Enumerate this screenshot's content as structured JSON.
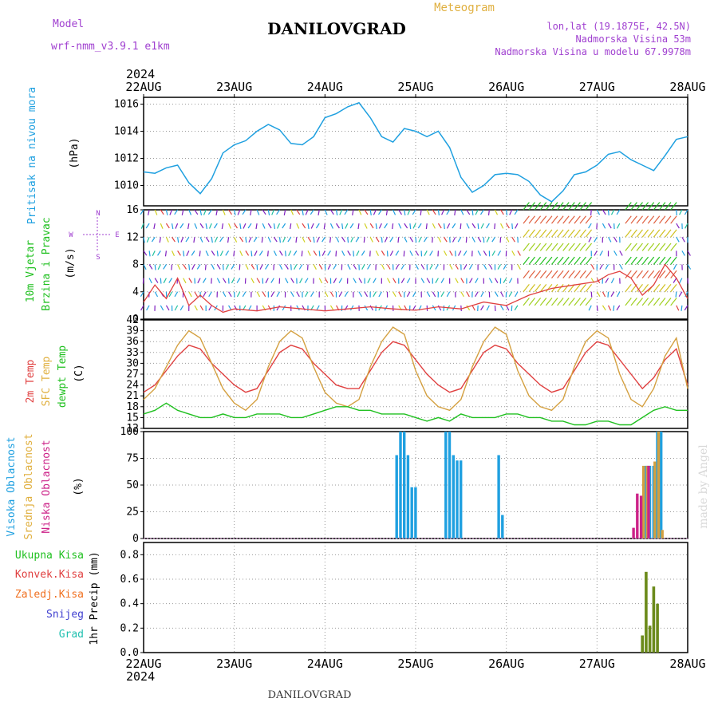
{
  "header": {
    "model_label": "Model",
    "model_name": "wrf-nmm_v3.9.1  e1km",
    "title": "DANILOVGRAD",
    "meteogram": "Meteogram",
    "lonlat": "lon,lat (19.1875E, 42.5N)",
    "altitude": "Nadmorska Visina 53m",
    "model_altitude": "Nadmorska Visina u modelu 67.9978m",
    "year_top": "2024",
    "year_bottom": "2024",
    "footer": "DANILOVGRAD",
    "credit": "made by Angel"
  },
  "dates": [
    "22AUG",
    "23AUG",
    "24AUG",
    "25AUG",
    "26AUG",
    "27AUG",
    "28AUG"
  ],
  "labels": {
    "pressure": [
      "Pritisak na nivou mora",
      "(hPa)"
    ],
    "wind": [
      "10m Vjetar",
      "Brzina i Pravac",
      "(m/s)"
    ],
    "compass": {
      "n": "N",
      "s": "S",
      "e": "E",
      "w": "W"
    },
    "temp": [
      "2m Temp",
      "SFC Temp",
      "dewpt Temp",
      "(C)"
    ],
    "cloud": [
      "Visoka Oblacnost",
      "Srednja Oblacnost",
      "Niska Oblacnost",
      "(%)"
    ],
    "precip_legend": [
      "Ukupna Kisa",
      "Konvek.Kisa",
      "Zaledj.Kisa",
      "Snijeg",
      "Grad"
    ],
    "precip_axis": "1hr Precip (mm)"
  },
  "colors": {
    "pressure": "#1fa0e0",
    "temp2m": "#e04040",
    "sfc": "#d4a040",
    "dewpt": "#20c020",
    "high_cloud": "#1fa0e0",
    "mid_cloud": "#d4a040",
    "low_cloud": "#cc2288",
    "wind_speed": "#e04040",
    "gust": "#000000",
    "precip": "#6b8a1a",
    "header_purple": "#a040d0",
    "meteogram_gold": "#e0b040"
  },
  "chart_data": [
    {
      "panel": "pressure",
      "type": "line",
      "x_unit": "hours since 22AUG 00UTC",
      "ylim": [
        1008.5,
        1016.5
      ],
      "yticks": [
        1010,
        1012,
        1014,
        1016
      ],
      "series": [
        {
          "x": [
            0,
            3,
            6,
            9,
            12,
            15,
            18,
            21,
            24,
            27,
            30,
            33,
            36,
            39,
            42,
            45,
            48,
            51,
            54,
            57,
            60,
            63,
            66,
            69,
            72,
            75,
            78,
            81,
            84,
            87,
            90,
            93,
            96,
            99,
            102,
            105,
            108,
            111,
            114,
            117,
            120,
            123,
            126,
            129,
            132,
            135,
            138,
            141,
            144
          ],
          "values": [
            1011.0,
            1010.9,
            1011.3,
            1011.5,
            1010.2,
            1009.4,
            1010.5,
            1012.4,
            1013.0,
            1013.3,
            1014.0,
            1014.5,
            1014.1,
            1013.1,
            1013.0,
            1013.6,
            1015.0,
            1015.3,
            1015.8,
            1016.1,
            1015.0,
            1013.6,
            1013.2,
            1014.2,
            1014.0,
            1013.6,
            1014.0,
            1012.8,
            1010.6,
            1009.5,
            1010.0,
            1010.8,
            1010.9,
            1010.8,
            1010.3,
            1009.3,
            1008.8,
            1009.6,
            1010.8,
            1011.0,
            1011.5,
            1012.3,
            1012.5,
            1011.9,
            1011.5,
            1011.1,
            1012.2,
            1013.4,
            1013.6
          ]
        }
      ]
    },
    {
      "panel": "wind",
      "type": "line",
      "ylim": [
        0,
        16
      ],
      "yticks": [
        0,
        4,
        8,
        12,
        16
      ],
      "series": [
        {
          "x": [
            0,
            3,
            6,
            9,
            12,
            15,
            18,
            21,
            24,
            30,
            36,
            42,
            48,
            54,
            60,
            66,
            72,
            78,
            84,
            90,
            96,
            102,
            108,
            114,
            120,
            123,
            126,
            129,
            132,
            135,
            138,
            141,
            144
          ],
          "values": [
            2.5,
            5.0,
            3.0,
            6.0,
            2.0,
            3.5,
            2.0,
            1.0,
            1.5,
            1.2,
            1.8,
            1.5,
            1.2,
            1.5,
            1.8,
            1.5,
            1.3,
            1.8,
            1.5,
            2.5,
            2.0,
            3.5,
            4.5,
            5.0,
            5.5,
            6.5,
            7.0,
            6.0,
            3.5,
            5.0,
            8.0,
            6.0,
            3.0
          ]
        }
      ]
    },
    {
      "panel": "temperature",
      "type": "line",
      "ylim": [
        12,
        42
      ],
      "yticks": [
        12,
        15,
        18,
        21,
        24,
        27,
        30,
        33,
        36,
        39,
        42
      ],
      "x": [
        0,
        3,
        6,
        9,
        12,
        15,
        18,
        21,
        24,
        27,
        30,
        33,
        36,
        39,
        42,
        45,
        48,
        51,
        54,
        57,
        60,
        63,
        66,
        69,
        72,
        75,
        78,
        81,
        84,
        87,
        90,
        93,
        96,
        99,
        102,
        105,
        108,
        111,
        114,
        117,
        120,
        123,
        126,
        129,
        132,
        135,
        138,
        141,
        144
      ],
      "series": [
        {
          "values": [
            22,
            24,
            28,
            32,
            35,
            34,
            30,
            27,
            24,
            22,
            23,
            28,
            33,
            35,
            34,
            30,
            27,
            24,
            23,
            23,
            28,
            33,
            36,
            35,
            31,
            27,
            24,
            22,
            23,
            28,
            33,
            35,
            34,
            30,
            27,
            24,
            22,
            23,
            28,
            33,
            36,
            35,
            31,
            27,
            23,
            26,
            31,
            34,
            24
          ]
        },
        {
          "values": [
            20,
            23,
            29,
            35,
            39,
            37,
            30,
            23,
            19,
            17,
            20,
            29,
            36,
            39,
            37,
            29,
            22,
            19,
            18,
            20,
            29,
            36,
            40,
            38,
            28,
            21,
            18,
            17,
            20,
            29,
            36,
            40,
            38,
            28,
            21,
            18,
            17,
            20,
            29,
            36,
            39,
            37,
            27,
            20,
            18,
            23,
            32,
            37,
            23
          ]
        },
        {
          "values": [
            16,
            17,
            19,
            17,
            16,
            15,
            15,
            16,
            15,
            15,
            16,
            16,
            16,
            15,
            15,
            16,
            17,
            18,
            18,
            17,
            17,
            16,
            16,
            16,
            15,
            14,
            15,
            14,
            16,
            15,
            15,
            15,
            16,
            16,
            15,
            15,
            14,
            14,
            13,
            13,
            14,
            14,
            13,
            13,
            15,
            17,
            18,
            17,
            17
          ]
        }
      ]
    },
    {
      "panel": "cloud",
      "type": "bar",
      "ylim": [
        0,
        100
      ],
      "yticks": [
        0,
        25,
        50,
        75,
        100
      ],
      "series": [
        {
          "x": [
            67,
            68,
            69,
            70,
            71,
            72,
            80,
            81,
            82,
            83,
            84,
            94,
            95,
            133,
            134,
            135,
            136,
            137
          ],
          "values": [
            78,
            100,
            100,
            78,
            48,
            48,
            100,
            100,
            78,
            73,
            73,
            78,
            22,
            68,
            68,
            68,
            100,
            100
          ]
        },
        {
          "x": [
            12,
            132,
            133,
            135,
            136,
            137
          ],
          "values": [
            5,
            68,
            68,
            72,
            100,
            8
          ]
        },
        {
          "x": [
            130,
            131,
            132,
            134
          ],
          "values": [
            10,
            42,
            40,
            68
          ]
        }
      ]
    },
    {
      "panel": "precip",
      "type": "bar",
      "ylim": [
        0,
        0.9
      ],
      "yticks": [
        0.0,
        0.2,
        0.4,
        0.6,
        0.8
      ],
      "series": [
        {
          "x": [
            132,
            133,
            134,
            135,
            136
          ],
          "values": [
            0.14,
            0.66,
            0.22,
            0.54,
            0.4
          ]
        }
      ]
    }
  ]
}
